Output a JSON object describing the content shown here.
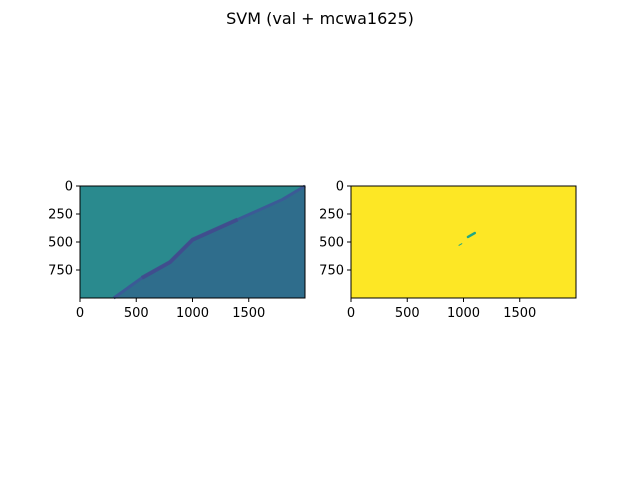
{
  "figure": {
    "title": "SVM (val + mcwa1625)"
  },
  "chart_data": [
    {
      "type": "heatmap",
      "title": "",
      "xlabel": "",
      "ylabel": "",
      "xlim": [
        0,
        2000
      ],
      "ylim": [
        1000,
        0
      ],
      "xticks": [
        0,
        500,
        1000,
        1500
      ],
      "yticks": [
        0,
        250,
        500,
        750
      ],
      "xtick_labels": [
        "0",
        "500",
        "1000",
        "1500"
      ],
      "ytick_labels": [
        "0",
        "250",
        "500",
        "750"
      ],
      "grid": false,
      "colormap": "viridis",
      "colors": {
        "background": "#2a8a8e",
        "lower_right": "#2f6d8c",
        "feature": "#3b5a96",
        "feature_dark": "#424a8c"
      },
      "feature_path": [
        [
          2000,
          0
        ],
        [
          1800,
          120
        ],
        [
          1400,
          300
        ],
        [
          1000,
          480
        ],
        [
          800,
          680
        ],
        [
          550,
          820
        ],
        [
          300,
          1000
        ]
      ]
    },
    {
      "type": "heatmap",
      "title": "",
      "xlabel": "",
      "ylabel": "",
      "xlim": [
        0,
        2000
      ],
      "ylim": [
        1000,
        0
      ],
      "xticks": [
        0,
        500,
        1000,
        1500
      ],
      "yticks": [
        0,
        250,
        500,
        750
      ],
      "xtick_labels": [
        "0",
        "500",
        "1000",
        "1500"
      ],
      "ytick_labels": [
        "0",
        "250",
        "500",
        "750"
      ],
      "grid": false,
      "colormap": "viridis",
      "colors": {
        "background": "#fde725",
        "feature": "#21a884"
      },
      "feature_segments": [
        [
          [
            1040,
            455
          ],
          [
            1100,
            420
          ]
        ],
        [
          [
            960,
            530
          ],
          [
            985,
            515
          ]
        ]
      ]
    }
  ]
}
